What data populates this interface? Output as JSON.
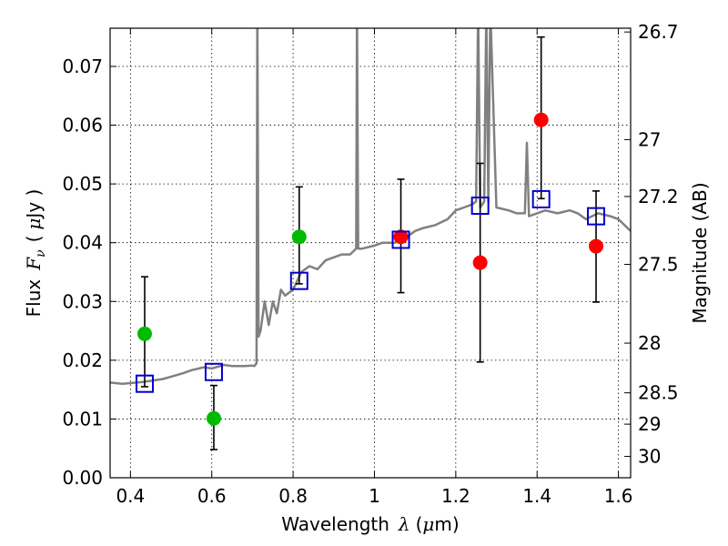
{
  "chart_data": {
    "type": "scatter",
    "xlabel_text": "Wavelength",
    "xlabel_math": "λ",
    "xlabel_unit_open": "(",
    "xlabel_unit_math": "μ",
    "xlabel_unit_rest": "m)",
    "ylabel_text": "Flux",
    "ylabel_math": "F",
    "ylabel_math_sub": "ν",
    "ylabel_unit_open": "(",
    "ylabel_unit_math": "μ",
    "ylabel_unit_rest": "Jy )",
    "y2label": "Magnitude (AB)",
    "xlim": [
      0.35,
      1.63
    ],
    "ylim": [
      0.0,
      0.0765
    ],
    "x_ticks": [
      0.4,
      0.6,
      0.8,
      1.0,
      1.2,
      1.4,
      1.6
    ],
    "x_tick_labels": [
      "0.4",
      "0.6",
      "0.8",
      "1",
      "1.2",
      "1.4",
      "1.6"
    ],
    "y_ticks": [
      0.0,
      0.01,
      0.02,
      0.03,
      0.04,
      0.05,
      0.06,
      0.07
    ],
    "y_tick_labels": [
      "0.00",
      "0.01",
      "0.02",
      "0.03",
      "0.04",
      "0.05",
      "0.06",
      "0.07"
    ],
    "y2_ticks": [
      26.7,
      27,
      27.2,
      27.5,
      28,
      28.5,
      29,
      30
    ],
    "y2_tick_labels": [
      "26.7",
      "27",
      "27.2",
      "27.5",
      "28",
      "28.5",
      "29",
      "30"
    ],
    "grid": true,
    "colors": {
      "spectrum": "#808080",
      "green_points": "#00bb00",
      "red_points": "#ff0000",
      "model_squares": "#0000cc",
      "errorbars": "#000000"
    },
    "series": [
      {
        "marker": "circle-green",
        "x": [
          0.435,
          0.605,
          0.815
        ],
        "y": [
          0.0245,
          0.0101,
          0.041
        ],
        "yerr_low": [
          0.0155,
          0.0048,
          0.033
        ],
        "yerr_high": [
          0.0342,
          0.0157,
          0.0495
        ]
      },
      {
        "marker": "circle-red",
        "x": [
          1.065,
          1.26,
          1.41,
          1.545
        ],
        "y": [
          0.041,
          0.0366,
          0.0609,
          0.0394
        ],
        "yerr_low": [
          0.0315,
          0.0197,
          0.0475,
          0.0299
        ],
        "yerr_high": [
          0.0508,
          0.0535,
          0.075,
          0.0488
        ]
      },
      {
        "marker": "square-blue",
        "x": [
          0.435,
          0.605,
          0.815,
          1.065,
          1.26,
          1.41,
          1.545
        ],
        "y": [
          0.016,
          0.018,
          0.0335,
          0.0405,
          0.0463,
          0.0474,
          0.0445
        ]
      },
      {
        "marker": "line-gray",
        "x": [
          0.35,
          0.38,
          0.4,
          0.43,
          0.45,
          0.48,
          0.5,
          0.53,
          0.55,
          0.58,
          0.6,
          0.63,
          0.65,
          0.68,
          0.7,
          0.705,
          0.71,
          0.712,
          0.715,
          0.72,
          0.73,
          0.74,
          0.75,
          0.76,
          0.77,
          0.78,
          0.8,
          0.82,
          0.84,
          0.86,
          0.88,
          0.9,
          0.92,
          0.94,
          0.955,
          0.957,
          0.96,
          0.97,
          1.0,
          1.02,
          1.05,
          1.08,
          1.1,
          1.12,
          1.15,
          1.18,
          1.2,
          1.22,
          1.24,
          1.25,
          1.255,
          1.26,
          1.27,
          1.275,
          1.28,
          1.285,
          1.3,
          1.33,
          1.35,
          1.37,
          1.375,
          1.38,
          1.4,
          1.42,
          1.45,
          1.48,
          1.5,
          1.52,
          1.55,
          1.58,
          1.6,
          1.63
        ],
        "y": [
          0.0162,
          0.016,
          0.0161,
          0.0163,
          0.0165,
          0.0168,
          0.0172,
          0.0178,
          0.0183,
          0.0188,
          0.0186,
          0.0192,
          0.019,
          0.019,
          0.0191,
          0.019,
          0.0195,
          0.08,
          0.024,
          0.025,
          0.03,
          0.026,
          0.03,
          0.028,
          0.032,
          0.031,
          0.032,
          0.035,
          0.036,
          0.0355,
          0.037,
          0.0375,
          0.038,
          0.038,
          0.039,
          0.08,
          0.039,
          0.039,
          0.0395,
          0.04,
          0.04,
          0.041,
          0.042,
          0.0425,
          0.043,
          0.044,
          0.0455,
          0.046,
          0.0465,
          0.047,
          0.08,
          0.046,
          0.047,
          0.08,
          0.047,
          0.08,
          0.046,
          0.0455,
          0.045,
          0.045,
          0.057,
          0.0445,
          0.045,
          0.0455,
          0.045,
          0.0455,
          0.045,
          0.044,
          0.045,
          0.0445,
          0.044,
          0.042
        ]
      }
    ]
  }
}
